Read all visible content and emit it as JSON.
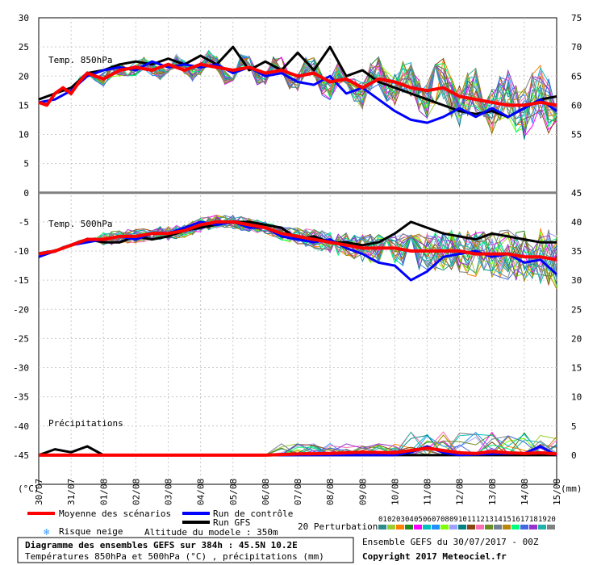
{
  "chart_data": {
    "type": "line",
    "title": "Diagramme des ensembles GEFS sur 384h : 45.5N 10.2E",
    "subtitle": "Températures 850hPa et 500hPa (°C) , précipitations (mm)",
    "run_label": "Ensemble GEFS du 30/07/2017 - 00Z",
    "copyright": "Copyright 2017 Meteociel.fr",
    "altitude": "Altitude du modele : 350m",
    "left_unit": "(°C)",
    "right_unit": "(mm)",
    "x_labels": [
      "30/07",
      "31/07",
      "01/08",
      "02/08",
      "03/08",
      "04/08",
      "05/08",
      "06/08",
      "07/08",
      "08/08",
      "09/08",
      "10/08",
      "11/08",
      "12/08",
      "13/08",
      "14/08",
      "15/08"
    ],
    "left_ticks": [
      30,
      25,
      20,
      15,
      10,
      5,
      0,
      -5,
      -10,
      -15,
      -20,
      -25,
      -30,
      -35,
      -40,
      -45
    ],
    "right_ticks_top": [
      75,
      70,
      65,
      60,
      55
    ],
    "right_ticks_bottom": [
      45,
      40,
      35,
      30,
      25,
      20,
      15,
      10,
      5,
      0
    ],
    "y_range": [
      -50,
      30
    ],
    "panel_labels": {
      "t850": "Temp. 850hPa",
      "t500": "Temp. 500hPa",
      "precip": "Précipitations"
    },
    "legend": {
      "mean": "Moyenne des scénarios",
      "control": "Run de contrôle",
      "gfs": "Run GFS",
      "snow": "Risque neige",
      "perturbations": "20 Perturbations"
    },
    "perturbation_ids": [
      "01",
      "02",
      "03",
      "04",
      "05",
      "06",
      "07",
      "08",
      "09",
      "10",
      "11",
      "12",
      "13",
      "14",
      "15",
      "16",
      "17",
      "18",
      "19",
      "20"
    ],
    "colors": {
      "mean": "#ff0000",
      "control": "#0000ff",
      "gfs": "#000000",
      "snow": "#3399ff",
      "perturbations": [
        "#2e8b8b",
        "#9acd32",
        "#ff7f00",
        "#228b22",
        "#ff00ff",
        "#00bfbf",
        "#1e90ff",
        "#7fff00",
        "#a0a0ff",
        "#008080",
        "#8b4513",
        "#ff6eb4",
        "#6b8e23",
        "#708090",
        "#b8860b",
        "#00ff7f",
        "#4169e1",
        "#9932cc",
        "#20b2aa",
        "#808080"
      ]
    },
    "series": [
      {
        "name": "Moyenne des scénarios",
        "panel": "t850",
        "x": [
          0,
          0.25,
          0.5,
          0.75,
          1,
          1.25,
          1.5,
          1.75,
          2,
          2.5,
          3,
          3.5,
          4,
          4.5,
          5,
          5.5,
          6,
          6.5,
          7,
          7.5,
          8,
          8.5,
          9,
          9.5,
          10,
          10.5,
          11,
          11.5,
          12,
          12.5,
          13,
          13.5,
          14,
          14.5,
          15,
          15.5,
          16
        ],
        "y": [
          15.5,
          15,
          17,
          18,
          17,
          19,
          20.5,
          20,
          19.5,
          21,
          21.5,
          21,
          22,
          21,
          22,
          21.5,
          21,
          21.5,
          20.5,
          21,
          20,
          20.5,
          19,
          19.5,
          18,
          19.5,
          19,
          18,
          17.5,
          18,
          16.5,
          16,
          15.5,
          15,
          15,
          15.5,
          15
        ]
      },
      {
        "name": "Run de contrôle",
        "panel": "t850",
        "x": [
          0,
          0.5,
          1,
          1.5,
          2,
          2.5,
          3,
          3.5,
          4,
          4.5,
          5,
          5.5,
          6,
          6.5,
          7,
          7.5,
          8,
          8.5,
          9,
          9.5,
          10,
          10.5,
          11,
          11.5,
          12,
          12.5,
          13,
          13.5,
          14,
          14.5,
          15,
          15.5,
          16
        ],
        "y": [
          15.5,
          16,
          17.5,
          20,
          21,
          21.5,
          21,
          22.5,
          21.5,
          22,
          21.5,
          22,
          20.5,
          21.5,
          20,
          20.5,
          19,
          18.5,
          20,
          17,
          18,
          16,
          14,
          12.5,
          12,
          13,
          14.5,
          13,
          14.5,
          13,
          14.5,
          16,
          14
        ]
      },
      {
        "name": "Run GFS",
        "panel": "t850",
        "x": [
          0,
          0.5,
          1,
          1.5,
          2,
          2.5,
          3,
          3.5,
          4,
          4.5,
          5,
          5.5,
          6,
          6.5,
          7,
          7.5,
          8,
          8.5,
          9,
          9.5,
          10,
          10.5,
          11,
          11.5,
          12,
          12.5,
          13,
          13.5,
          14,
          14.5,
          15,
          15.5,
          16
        ],
        "y": [
          16,
          17,
          18,
          20.5,
          21,
          22,
          22.5,
          22,
          23,
          22,
          23.5,
          22,
          25,
          21,
          22.5,
          21,
          24,
          21,
          25,
          20,
          21,
          19,
          18,
          17,
          16,
          15,
          14,
          13.5,
          14,
          13,
          14.5,
          16,
          16.5
        ]
      },
      {
        "name": "Moyenne des scénarios",
        "panel": "t500",
        "x": [
          0,
          0.5,
          1,
          1.5,
          2,
          2.5,
          3,
          3.5,
          4,
          4.5,
          5,
          5.5,
          6,
          6.5,
          7,
          7.5,
          8,
          8.5,
          9,
          9.5,
          10,
          10.5,
          11,
          11.5,
          12,
          12.5,
          13,
          13.5,
          14,
          14.5,
          15,
          15.5,
          16
        ],
        "y": [
          -10.5,
          -10,
          -9,
          -8,
          -8,
          -7.5,
          -7.5,
          -7,
          -7,
          -6.5,
          -5.5,
          -5,
          -5,
          -5.5,
          -6,
          -7,
          -7.5,
          -8,
          -8.5,
          -9,
          -9.5,
          -9.5,
          -9.5,
          -10,
          -10,
          -10,
          -10,
          -10.5,
          -10.5,
          -10.5,
          -11,
          -11,
          -11.5
        ]
      },
      {
        "name": "Run de contrôle",
        "panel": "t500",
        "x": [
          0,
          0.5,
          1,
          1.5,
          2,
          2.5,
          3,
          3.5,
          4,
          4.5,
          5,
          5.5,
          6,
          6.5,
          7,
          7.5,
          8,
          8.5,
          9,
          9.5,
          10,
          10.5,
          11,
          11.5,
          12,
          12.5,
          13,
          13.5,
          14,
          14.5,
          15,
          15.5,
          16
        ],
        "y": [
          -11,
          -10,
          -9,
          -8.5,
          -8,
          -7.5,
          -8,
          -7,
          -7,
          -6,
          -5,
          -5.5,
          -5,
          -6,
          -6,
          -7.5,
          -8,
          -8.5,
          -8,
          -9.5,
          -10.5,
          -12,
          -12.5,
          -15,
          -13.5,
          -11,
          -10.5,
          -10,
          -11,
          -10.5,
          -12,
          -11.5,
          -14
        ]
      },
      {
        "name": "Run GFS",
        "panel": "t500",
        "x": [
          0,
          0.5,
          1,
          1.5,
          2,
          2.5,
          3,
          3.5,
          4,
          4.5,
          5,
          5.5,
          6,
          6.5,
          7,
          7.5,
          8,
          8.5,
          9,
          9.5,
          10,
          10.5,
          11,
          11.5,
          12,
          12.5,
          13,
          13.5,
          14,
          14.5,
          15,
          15.5,
          16
        ],
        "y": [
          -11,
          -10,
          -9,
          -8,
          -8.5,
          -8.5,
          -7.5,
          -8,
          -7.5,
          -6.5,
          -6,
          -5.5,
          -5,
          -5,
          -5.5,
          -6,
          -8,
          -7.5,
          -8.5,
          -8.5,
          -9,
          -8.5,
          -7,
          -5,
          -6,
          -7,
          -7.5,
          -8,
          -7,
          -7.5,
          -8,
          -8.5,
          -8.5
        ]
      },
      {
        "name": "Moyenne des scénarios",
        "panel": "precip",
        "x": [
          0,
          1,
          2,
          3,
          4,
          5,
          6,
          7,
          8,
          9,
          10,
          11,
          11.5,
          12,
          12.5,
          13,
          13.5,
          14,
          14.5,
          15,
          15.5,
          16
        ],
        "y": [
          0,
          0,
          0,
          0,
          0,
          0,
          0,
          0,
          0.2,
          0.3,
          0.5,
          0.4,
          0.8,
          1.2,
          0.8,
          0.4,
          0.3,
          0.6,
          0.4,
          0.3,
          0.4,
          0.2
        ]
      },
      {
        "name": "Run de contrôle",
        "panel": "precip",
        "x": [
          0,
          2,
          4,
          6,
          8,
          10,
          11,
          11.5,
          12,
          12.5,
          13,
          14,
          15,
          15.5,
          16
        ],
        "y": [
          0,
          0,
          0,
          0,
          0,
          0,
          0,
          0.5,
          1.5,
          0.4,
          0,
          0.2,
          0.3,
          1.5,
          0
        ]
      },
      {
        "name": "Run GFS",
        "panel": "precip",
        "x": [
          0,
          0.5,
          1,
          1.5,
          2,
          4,
          6,
          8,
          10,
          12,
          14,
          16
        ],
        "y": [
          0,
          1,
          0.5,
          1.5,
          0,
          0,
          0,
          0,
          0,
          0,
          0,
          0
        ]
      }
    ]
  }
}
